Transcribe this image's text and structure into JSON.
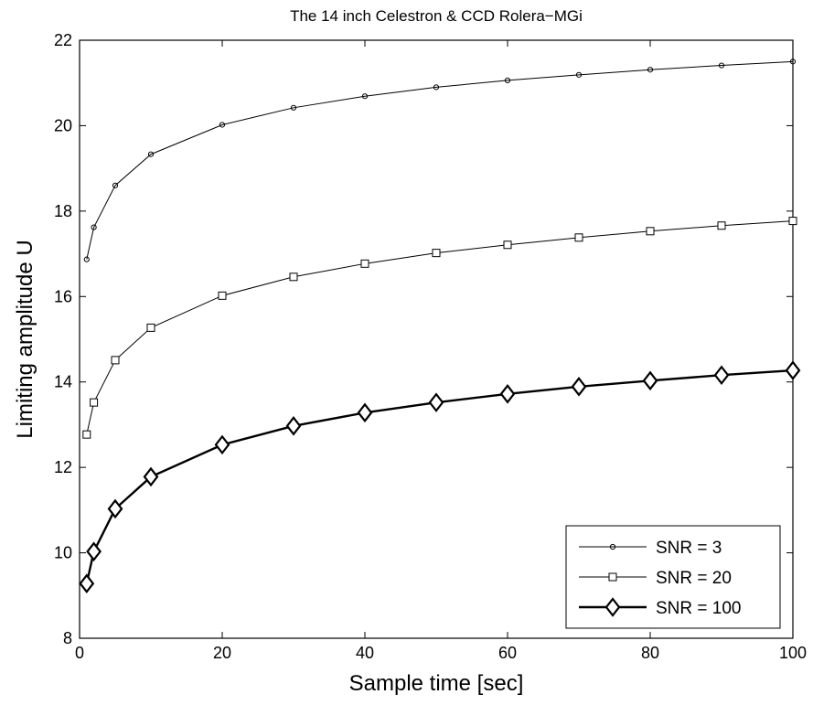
{
  "chart_data": {
    "type": "line",
    "title": "The 14 inch Celestron & CCD Rolera−MGi",
    "xlabel": "Sample time [sec]",
    "ylabel": "Limiting amplitude U",
    "xlim": [
      0,
      100
    ],
    "ylim": [
      8,
      22
    ],
    "xticks": [
      "0",
      "20",
      "40",
      "60",
      "80",
      "100"
    ],
    "yticks": [
      "8",
      "10",
      "12",
      "14",
      "16",
      "18",
      "20",
      "22"
    ],
    "grid": false,
    "legend_position": "bottom-right",
    "series": [
      {
        "name": "SNR = 3",
        "marker": "circle",
        "x": [
          1,
          2,
          5,
          10,
          20,
          30,
          40,
          50,
          60,
          70,
          80,
          90,
          100
        ],
        "y": [
          16.87,
          17.62,
          18.6,
          19.33,
          20.02,
          20.42,
          20.69,
          20.9,
          21.06,
          21.19,
          21.31,
          21.41,
          21.5
        ]
      },
      {
        "name": "SNR = 20",
        "marker": "square",
        "x": [
          1,
          2,
          5,
          10,
          20,
          30,
          40,
          50,
          60,
          70,
          80,
          90,
          100
        ],
        "y": [
          12.77,
          13.52,
          14.51,
          15.27,
          16.02,
          16.46,
          16.77,
          17.02,
          17.21,
          17.38,
          17.53,
          17.66,
          17.77
        ]
      },
      {
        "name": "SNR = 100",
        "marker": "diamond",
        "x": [
          1,
          2,
          5,
          10,
          20,
          30,
          40,
          50,
          60,
          70,
          80,
          90,
          100
        ],
        "y": [
          9.28,
          10.03,
          11.03,
          11.78,
          12.53,
          12.97,
          13.28,
          13.52,
          13.72,
          13.89,
          14.03,
          14.16,
          14.27
        ]
      }
    ]
  }
}
